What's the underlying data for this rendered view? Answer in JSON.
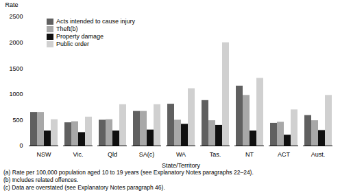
{
  "chart_data": {
    "type": "bar",
    "xlabel": "State/Territory",
    "ylabel": "Rate",
    "categories": [
      "NSW",
      "Vic.",
      "Qld",
      "SA(c)",
      "WA",
      "Tas.",
      "NT",
      "ACT",
      "Aust."
    ],
    "series": [
      {
        "name": "Acts intended to cause injury",
        "color": "#606060",
        "values": [
          650,
          450,
          500,
          670,
          810,
          880,
          1160,
          440,
          590
        ]
      },
      {
        "name": "Theft(b)",
        "color": "#a8a8a8",
        "values": [
          650,
          470,
          510,
          670,
          500,
          490,
          980,
          460,
          490
        ]
      },
      {
        "name": "Property damage",
        "color": "#101010",
        "values": [
          290,
          260,
          290,
          310,
          420,
          400,
          290,
          210,
          300
        ]
      },
      {
        "name": "Public order",
        "color": "#d0d0d0",
        "values": [
          510,
          560,
          800,
          800,
          1110,
          2000,
          1310,
          700,
          980
        ]
      }
    ],
    "ylim": [
      0,
      2500
    ],
    "yticks": [
      0,
      500,
      1000,
      1500,
      2000,
      2500
    ],
    "grid": false,
    "legend": "upper left",
    "annotations": [
      "(a) Rate per 100,000 population aged 10 to 19 years (see Explanatory Notes paragraphs 22–24).",
      "(b) Includes related offences.",
      "(c) Data are overstated (see Explanatory Notes paragraph 46)."
    ]
  }
}
